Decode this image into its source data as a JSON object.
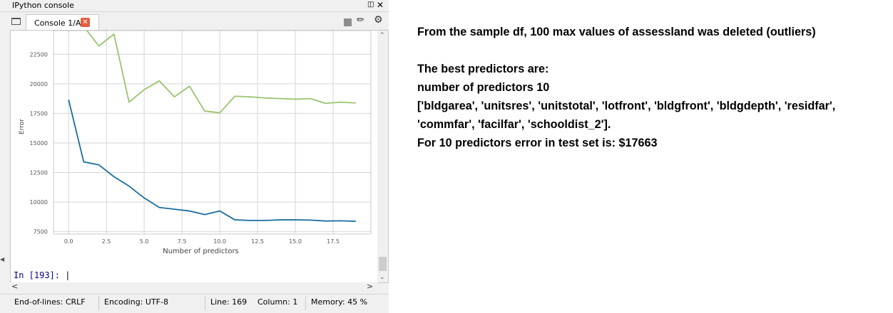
{
  "pane": {
    "title": "IPython console",
    "float_icon": "float-window-icon",
    "close_icon": "close-icon"
  },
  "tabs": [
    {
      "label": "Console 1/A",
      "close_icon": "tab-close-icon"
    }
  ],
  "toolbar": {
    "stop_icon": "stop-square-icon",
    "eraser_icon": "eraser-icon",
    "gear_icon": "gear-icon"
  },
  "chart_data": {
    "type": "line",
    "xlabel": "Number of predictors",
    "ylabel": "Error",
    "xlim": [
      -1,
      20
    ],
    "ylim": [
      7300,
      24500
    ],
    "grid": true,
    "x": [
      0,
      1,
      2,
      3,
      4,
      5,
      6,
      7,
      8,
      9,
      10,
      11,
      12,
      13,
      14,
      15,
      16,
      17,
      18,
      19
    ],
    "xticks": [
      "0.0",
      "2.5",
      "5.0",
      "7.5",
      "10.0",
      "12.5",
      "15.0",
      "17.5"
    ],
    "xtick_values": [
      0,
      2.5,
      5,
      7.5,
      10,
      12.5,
      15,
      17.5
    ],
    "yticks": [
      "7500",
      "10000",
      "12500",
      "15000",
      "17500",
      "20000",
      "22500"
    ],
    "ytick_values": [
      7500,
      10000,
      12500,
      15000,
      17500,
      20000,
      22500
    ],
    "series": [
      {
        "color": "#9ac46e",
        "values": [
          24500,
          24850,
          23200,
          24200,
          18450,
          19500,
          20250,
          18900,
          19800,
          17700,
          17550,
          18950,
          18900,
          18800,
          18750,
          18700,
          18750,
          18350,
          18450,
          18380
        ]
      },
      {
        "color": "#1a6fa0",
        "values": [
          18650,
          13400,
          13150,
          12150,
          11350,
          10350,
          9550,
          9400,
          9250,
          8950,
          9250,
          8500,
          8450,
          8450,
          8500,
          8500,
          8480,
          8400,
          8420,
          8380
        ]
      }
    ]
  },
  "console": {
    "prompt": "In [193]: ",
    "up_icon": "scroll-up-icon",
    "down_icon": "scroll-down-icon",
    "left_icon": "scroll-left-icon",
    "right_icon": "scroll-right-icon"
  },
  "statusbar": {
    "eol": "End-of-lines: CRLF",
    "encoding": "Encoding: UTF-8",
    "line": "Line: 169",
    "column": "Column: 1",
    "memory": "Memory: 45 %"
  },
  "notes": {
    "line1": "From the sample df, 100 max values of assessland was deleted (outliers)",
    "line2": "The best predictors are:",
    "line3": "number of predictors 10",
    "line4": "['bldgarea', 'unitsres', 'unitstotal', 'lotfront', 'bldgfront', 'bldgdepth', 'residfar',",
    "line5": "'commfar', 'facilfar', 'schooldist_2'].",
    "line6": "For 10 predictors error in test set is: $17663"
  }
}
